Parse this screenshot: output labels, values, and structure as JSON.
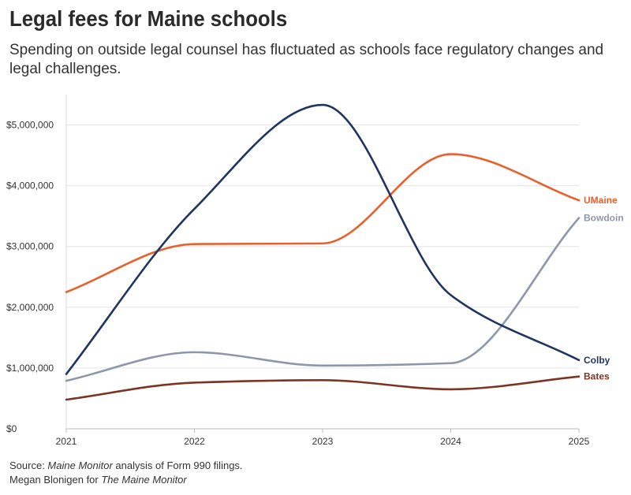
{
  "header": {
    "title": "Legal fees for Maine schools",
    "subtitle": "Spending on outside legal counsel has fluctuated as schools face regulatory changes and legal challenges."
  },
  "footer": {
    "source_prefix": "Source: ",
    "source_publication": "Maine Monitor",
    "source_suffix": " analysis of Form 990 filings.",
    "credit_prefix": "Megan Blonigen for ",
    "credit_publication": "The Maine Monitor"
  },
  "chart_data": {
    "type": "line",
    "title": "Legal fees for Maine schools",
    "xlabel": "",
    "ylabel": "",
    "x": [
      2021,
      2022,
      2023,
      2024,
      2025
    ],
    "x_tick_labels": [
      "2021",
      "2022",
      "2023",
      "2024",
      "2025"
    ],
    "ylim": [
      0,
      5500000
    ],
    "y_ticks": [
      0,
      1000000,
      2000000,
      3000000,
      4000000,
      5000000
    ],
    "y_tick_labels": [
      "$0",
      "$1,000,000",
      "$2,000,000",
      "$3,000,000",
      "$4,000,000",
      "$5,000,000"
    ],
    "grid": true,
    "legend": "direct labels at right end of lines",
    "series": [
      {
        "name": "UMaine",
        "color": "#e8602c",
        "values": [
          2250000,
          3040000,
          3050000,
          4520000,
          3760000
        ]
      },
      {
        "name": "Bowdoin",
        "color": "#8e97aa",
        "values": [
          790000,
          1260000,
          1040000,
          1080000,
          3470000
        ]
      },
      {
        "name": "Colby",
        "color": "#1f355e",
        "values": [
          900000,
          3620000,
          5330000,
          2200000,
          1130000
        ]
      },
      {
        "name": "Bates",
        "color": "#7c3524",
        "values": [
          480000,
          760000,
          800000,
          650000,
          860000
        ]
      }
    ]
  }
}
